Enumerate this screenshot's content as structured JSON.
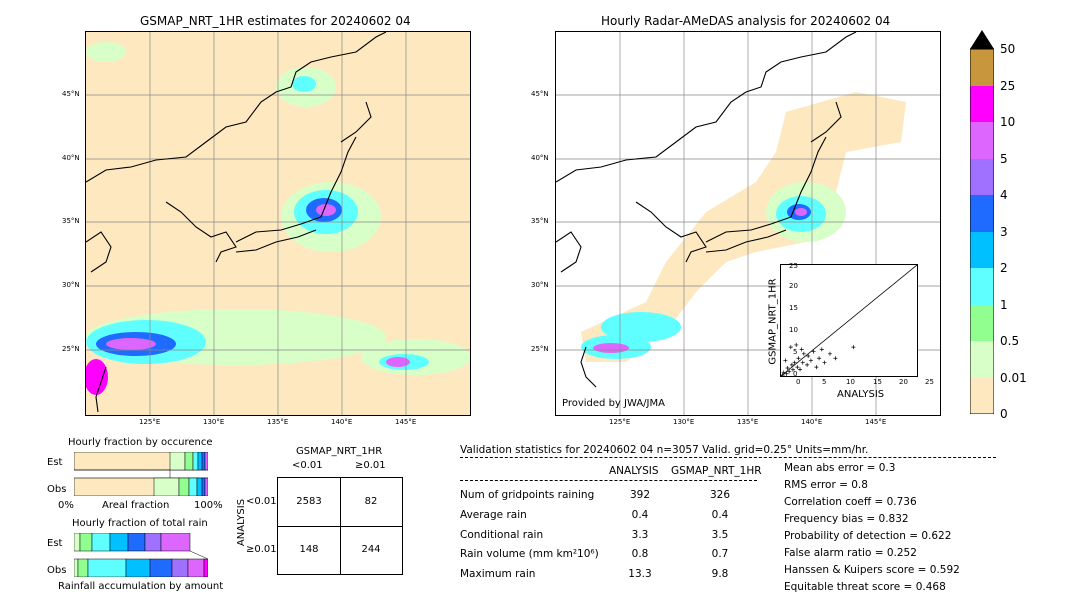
{
  "left_map": {
    "title": "GSMAP_NRT_1HR estimates for 20240602 04",
    "lat_labels": [
      "45°N",
      "40°N",
      "35°N",
      "30°N",
      "25°N"
    ],
    "lon_labels": [
      "125°E",
      "130°E",
      "135°E",
      "140°E",
      "145°E"
    ]
  },
  "right_map": {
    "title": "Hourly Radar-AMeDAS analysis for 20240602 04",
    "lat_labels": [
      "45°N",
      "40°N",
      "35°N",
      "30°N",
      "25°N"
    ],
    "lon_labels": [
      "125°E",
      "130°E",
      "135°E",
      "140°E",
      "145°E"
    ],
    "credit": "Provided by JWA/JMA"
  },
  "colorbar": {
    "labels": [
      "50",
      "25",
      "10",
      "5",
      "4",
      "3",
      "2",
      "1",
      "0.5",
      "0.01",
      "0"
    ],
    "colors": {
      "c50": "#c8963c",
      "c25": "#ff00ff",
      "c10": "#dd66ff",
      "c5": "#a070ff",
      "c4": "#1f6bff",
      "c3": "#00c0ff",
      "c2": "#60ffff",
      "c1": "#90ff90",
      "c05": "#d8ffc8",
      "c001": "#fde8c0"
    }
  },
  "scatter": {
    "xlabel": "ANALYSIS",
    "ylabel": "GSMAP_NRT_1HR",
    "ticks": [
      "0",
      "5",
      "10",
      "15",
      "20",
      "25"
    ]
  },
  "fraction_occurrence": {
    "title": "Hourly fraction by occurence",
    "row_est": "Est",
    "row_obs": "Obs",
    "axis_left": "0%",
    "axis_mid": "Areal fraction",
    "axis_right": "100%"
  },
  "fraction_total": {
    "title": "Hourly fraction of total rain",
    "row_est": "Est",
    "row_obs": "Obs",
    "axis_label": "Rainfall accumulation by amount"
  },
  "contingency": {
    "title": "GSMAP_NRT_1HR",
    "col_lt": "<0.01",
    "col_ge": "≥0.01",
    "side_label": "ANALYSIS",
    "row_lt": "<0.01",
    "row_ge": "≥0.01",
    "cells": [
      "2583",
      "82",
      "148",
      "244"
    ]
  },
  "validation": {
    "header": "Validation statistics for 20240602 04  n=3057 Valid. grid=0.25° Units=mm/hr.",
    "col_analysis": "ANALYSIS",
    "col_gsmap": "GSMAP_NRT_1HR",
    "rows": [
      {
        "label": "Num of gridpoints raining",
        "a": "392",
        "g": "326"
      },
      {
        "label": "Average rain",
        "a": "0.4",
        "g": "0.4"
      },
      {
        "label": "Conditional rain",
        "a": "3.3",
        "g": "3.5"
      },
      {
        "label": "Rain volume (mm km²10⁶)",
        "a": "0.8",
        "g": "0.7"
      },
      {
        "label": "Maximum rain",
        "a": "13.3",
        "g": "9.8"
      }
    ],
    "scores": [
      "Mean abs error =    0.3",
      "RMS error =    0.8",
      "Correlation coeff =  0.736",
      "Frequency bias =  0.832",
      "Probability of detection =  0.622",
      "False alarm ratio =  0.252",
      "Hanssen & Kuipers score =  0.592",
      "Equitable threat score =  0.468"
    ]
  },
  "chart_data": {
    "type": "scatter",
    "title": "",
    "xlabel": "ANALYSIS",
    "ylabel": "GSMAP_NRT_1HR",
    "xlim": [
      0,
      25
    ],
    "ylim": [
      0,
      25
    ],
    "points": [
      [
        0.3,
        0.2
      ],
      [
        0.5,
        0.8
      ],
      [
        1.0,
        0.5
      ],
      [
        1.2,
        1.8
      ],
      [
        1.5,
        1.0
      ],
      [
        2.0,
        2.5
      ],
      [
        2.2,
        1.4
      ],
      [
        2.5,
        3.0
      ],
      [
        3.0,
        2.0
      ],
      [
        3.2,
        4.0
      ],
      [
        3.5,
        1.5
      ],
      [
        4.0,
        3.0
      ],
      [
        4.2,
        5.0
      ],
      [
        4.8,
        2.5
      ],
      [
        5.0,
        4.5
      ],
      [
        5.5,
        3.5
      ],
      [
        6.0,
        5.5
      ],
      [
        6.5,
        2.0
      ],
      [
        7.0,
        4.0
      ],
      [
        7.5,
        6.0
      ],
      [
        8.0,
        3.0
      ],
      [
        9.0,
        5.0
      ],
      [
        10.0,
        4.0
      ],
      [
        13.3,
        6.5
      ],
      [
        1.8,
        6.5
      ],
      [
        2.8,
        7.0
      ],
      [
        0.8,
        3.5
      ],
      [
        3.8,
        6.0
      ]
    ]
  }
}
